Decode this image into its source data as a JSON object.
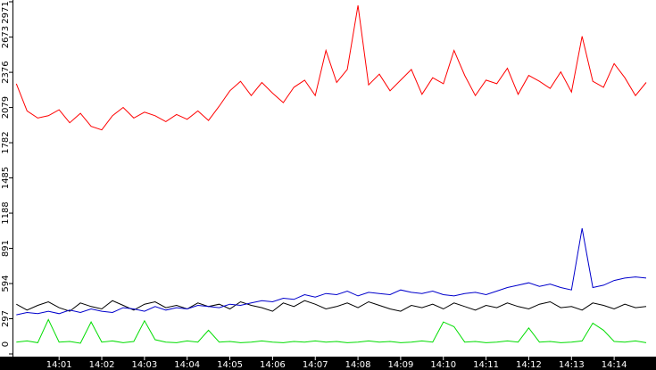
{
  "chart_data": {
    "type": "line",
    "x": [
      840,
      840.25,
      840.5,
      840.75,
      841,
      841.25,
      841.5,
      841.75,
      842,
      842.25,
      842.5,
      842.75,
      843,
      843.25,
      843.5,
      843.75,
      844,
      844.25,
      844.5,
      844.75,
      845,
      845.25,
      845.5,
      845.75,
      846,
      846.25,
      846.5,
      846.75,
      847,
      847.25,
      847.5,
      847.75,
      848,
      848.25,
      848.5,
      848.75,
      849,
      849.25,
      849.5,
      849.75,
      850,
      850.25,
      850.5,
      850.75,
      851,
      851.25,
      851.5,
      851.75,
      852,
      852.25,
      852.5,
      852.75,
      853,
      853.25,
      853.5,
      853.75,
      854,
      854.25,
      854.5,
      854.75
    ],
    "series": [
      {
        "color": "#ff0000",
        "values": [
          2280,
          2050,
          1990,
          2010,
          2060,
          1950,
          2030,
          1920,
          1890,
          2010,
          2080,
          1990,
          2040,
          2010,
          1960,
          2020,
          1980,
          2050,
          1970,
          2090,
          2220,
          2300,
          2180,
          2290,
          2200,
          2120,
          2250,
          2310,
          2180,
          2560,
          2290,
          2400,
          2940,
          2270,
          2360,
          2220,
          2310,
          2400,
          2190,
          2330,
          2280,
          2560,
          2350,
          2180,
          2310,
          2280,
          2410,
          2190,
          2350,
          2300,
          2240,
          2380,
          2210,
          2680,
          2300,
          2250,
          2450,
          2330,
          2180,
          2290
        ]
      },
      {
        "color": "#000000",
        "values": [
          420,
          370,
          410,
          440,
          390,
          360,
          430,
          400,
          380,
          450,
          410,
          370,
          420,
          440,
          390,
          410,
          380,
          430,
          400,
          420,
          380,
          440,
          410,
          390,
          360,
          430,
          400,
          450,
          420,
          380,
          400,
          430,
          390,
          440,
          410,
          380,
          360,
          410,
          390,
          420,
          380,
          430,
          400,
          370,
          410,
          390,
          430,
          400,
          380,
          420,
          440,
          390,
          400,
          370,
          430,
          410,
          380,
          420,
          390,
          400
        ]
      },
      {
        "color": "#0000cc",
        "values": [
          330,
          350,
          340,
          360,
          340,
          370,
          350,
          380,
          360,
          350,
          390,
          380,
          360,
          400,
          370,
          390,
          380,
          410,
          400,
          390,
          420,
          410,
          430,
          450,
          440,
          470,
          460,
          500,
          480,
          510,
          500,
          530,
          490,
          520,
          510,
          500,
          540,
          520,
          510,
          530,
          500,
          490,
          510,
          520,
          500,
          530,
          560,
          580,
          600,
          570,
          590,
          560,
          540,
          1060,
          560,
          580,
          620,
          640,
          650,
          640
        ]
      },
      {
        "color": "#00dd00",
        "values": [
          100,
          110,
          95,
          290,
          100,
          105,
          90,
          270,
          100,
          110,
          95,
          105,
          280,
          120,
          100,
          95,
          110,
          100,
          200,
          100,
          105,
          95,
          100,
          110,
          100,
          95,
          105,
          100,
          110,
          100,
          105,
          95,
          100,
          110,
          100,
          105,
          95,
          100,
          110,
          100,
          270,
          230,
          100,
          105,
          95,
          100,
          110,
          100,
          220,
          100,
          105,
          95,
          100,
          110,
          260,
          200,
          105,
          100,
          110,
          95
        ]
      }
    ],
    "xlim": [
      839.93,
      854.98
    ],
    "xticks": [
      {
        "value": 841,
        "label": "14:01"
      },
      {
        "value": 842,
        "label": "14:02"
      },
      {
        "value": 843,
        "label": "14:03"
      },
      {
        "value": 844,
        "label": "14:04"
      },
      {
        "value": 845,
        "label": "14:05"
      },
      {
        "value": 846,
        "label": "14:06"
      },
      {
        "value": 847,
        "label": "14:07"
      },
      {
        "value": 848,
        "label": "14:08"
      },
      {
        "value": 849,
        "label": "14:09"
      },
      {
        "value": 850,
        "label": "14:10"
      },
      {
        "value": 851,
        "label": "14:11"
      },
      {
        "value": 852,
        "label": "14:12"
      },
      {
        "value": 853,
        "label": "14:13"
      },
      {
        "value": 854,
        "label": "14:14"
      }
    ],
    "ylim": [
      0,
      2971
    ],
    "yticks": [
      0,
      297,
      594,
      891,
      1188,
      1485,
      1782,
      2079,
      2376,
      2673,
      2971
    ]
  }
}
